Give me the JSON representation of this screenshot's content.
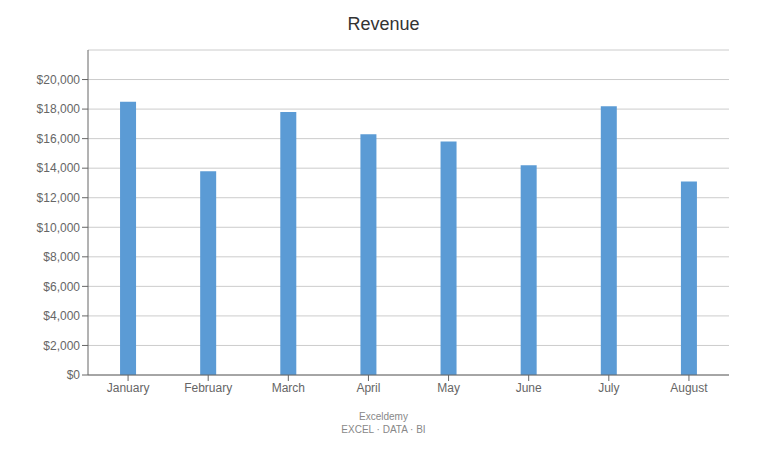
{
  "chart_data": {
    "type": "bar",
    "title": "Revenue",
    "categories": [
      "January",
      "February",
      "March",
      "April",
      "May",
      "June",
      "July",
      "August"
    ],
    "values": [
      18500,
      13800,
      17800,
      16300,
      15800,
      14200,
      18200,
      13100
    ],
    "color": "#5B9BD5",
    "ylim": [
      0,
      22000
    ],
    "yticks": [
      {
        "value": 0,
        "label": "$0"
      },
      {
        "value": 2000,
        "label": "$2,000"
      },
      {
        "value": 4000,
        "label": "$4,000"
      },
      {
        "value": 6000,
        "label": "$6,000"
      },
      {
        "value": 8000,
        "label": "$8,000"
      },
      {
        "value": 10000,
        "label": "$10,000"
      },
      {
        "value": 12000,
        "label": "$12,000"
      },
      {
        "value": 14000,
        "label": "$14,000"
      },
      {
        "value": 16000,
        "label": "$16,000"
      },
      {
        "value": 18000,
        "label": "$18,000"
      },
      {
        "value": 20000,
        "label": "$20,000"
      }
    ],
    "grid": true,
    "annotations": [
      "Exceldemy",
      "EXCEL · DATA · BI"
    ]
  }
}
